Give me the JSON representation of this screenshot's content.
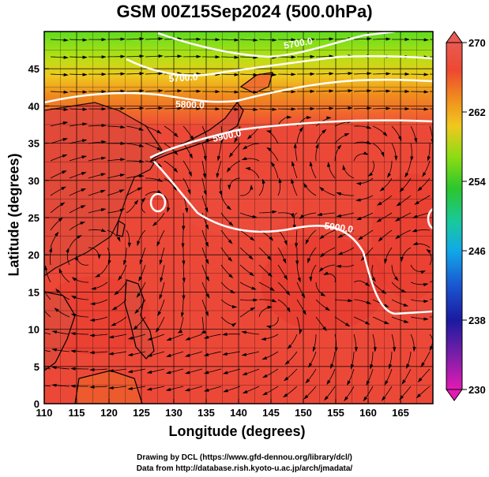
{
  "title": "GSM 00Z15Sep2024 (500.0hPa)",
  "map": {
    "xlabel": "Longitude (degrees)",
    "ylabel": "Latitude  (degrees)",
    "lon_range": [
      110,
      170
    ],
    "lat_range": [
      0,
      50
    ],
    "x_ticks": [
      "110",
      "115",
      "120",
      "125",
      "130",
      "135",
      "140",
      "145",
      "150",
      "155",
      "160",
      "165"
    ],
    "y_ticks": [
      "0",
      "5",
      "10",
      "15",
      "20",
      "25",
      "30",
      "35",
      "40",
      "45"
    ],
    "contour_labels": [
      "5700.0",
      "5800.0",
      "5900.0",
      "5900.0",
      "5700.0"
    ],
    "contour_values": [
      5700,
      5800,
      5900
    ]
  },
  "colorbar": {
    "ticks": [
      "270",
      "262",
      "254",
      "246",
      "238",
      "230"
    ],
    "min": 230,
    "max": 270,
    "colors": [
      "#e41ab4",
      "#7a1ea8",
      "#1a1aa0",
      "#1a56d0",
      "#12a8e8",
      "#18c8a0",
      "#2cc62c",
      "#8cdc14",
      "#f0c81e",
      "#f08c1e",
      "#ee4832",
      "#e85a52"
    ]
  },
  "credits": {
    "line1": "Drawing by DCL (https://www.gfd-dennou.org/library/dcl/)",
    "line2": "Data from http://database.rish.kyoto-u.ac.jp/arch/jmadata/"
  }
}
